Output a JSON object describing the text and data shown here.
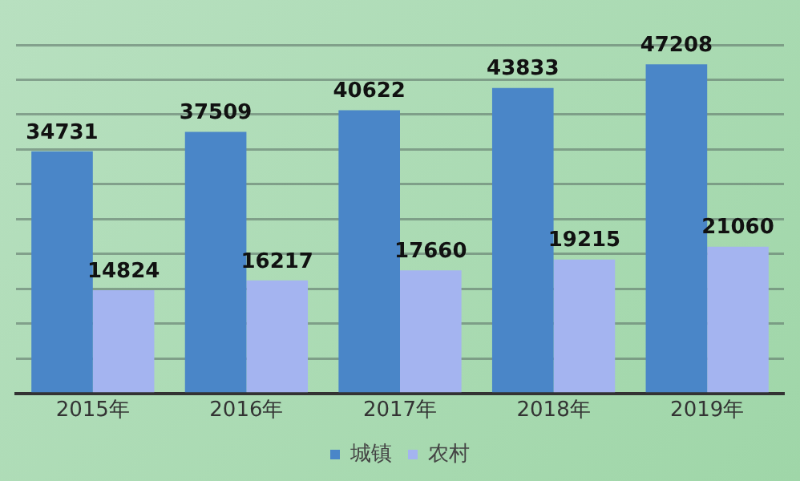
{
  "chart_data": {
    "type": "bar",
    "categories": [
      "2015年",
      "2016年",
      "2017年",
      "2018年",
      "2019年"
    ],
    "series": [
      {
        "name": "城镇",
        "color": "#4a86c8",
        "values": [
          34731,
          37509,
          40622,
          43833,
          47208
        ]
      },
      {
        "name": "农村",
        "color": "#a4b4f0",
        "values": [
          14824,
          16217,
          17660,
          19215,
          21060
        ]
      }
    ],
    "ylim": [
      0,
      50000
    ],
    "yticks": [
      0,
      5000,
      10000,
      15000,
      20000,
      25000,
      30000,
      35000,
      40000,
      45000,
      50000
    ],
    "tick_labels": "x",
    "grid": "y",
    "data_labels": true,
    "legend": "bottom"
  }
}
